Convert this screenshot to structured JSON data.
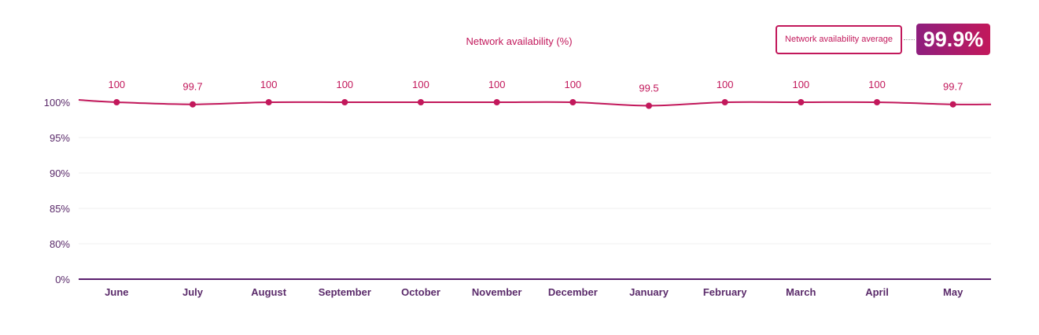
{
  "chart_data": {
    "type": "line",
    "title": "Network availability (%)",
    "categories": [
      "June",
      "July",
      "August",
      "September",
      "October",
      "November",
      "December",
      "January",
      "February",
      "March",
      "April",
      "May"
    ],
    "values": [
      100,
      99.7,
      100,
      100,
      100,
      100,
      100,
      99.5,
      100,
      100,
      100,
      99.7
    ],
    "data_labels": [
      "100",
      "99.7",
      "100",
      "100",
      "100",
      "100",
      "100",
      "99.5",
      "100",
      "100",
      "100",
      "99.7"
    ],
    "y_ticks": [
      "0%",
      "80%",
      "85%",
      "90%",
      "95%",
      "100%"
    ],
    "line_color": "#c2185b",
    "axis_color": "#5a1f6e",
    "grid": true,
    "legend": "none"
  },
  "summary": {
    "label": "Network availability average",
    "value": "99.9%"
  }
}
